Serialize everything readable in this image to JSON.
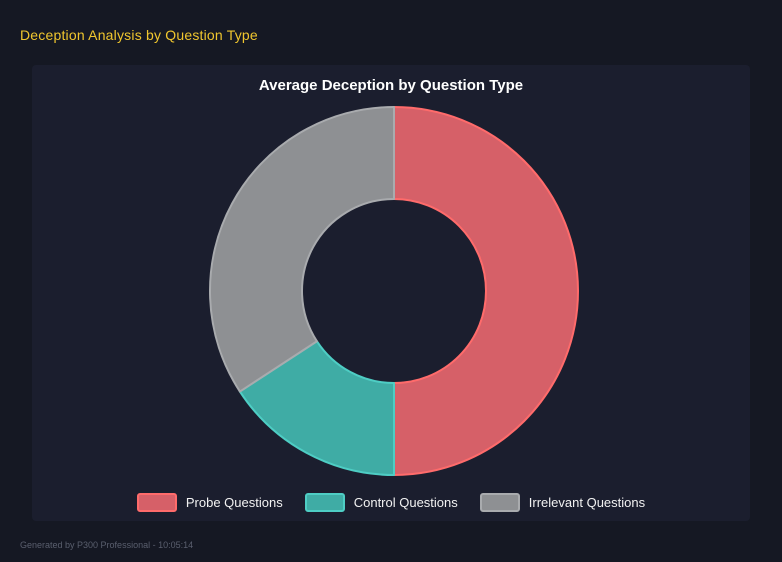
{
  "header": {
    "title": "Deception Analysis by Question Type",
    "title_color": "#f0c62e"
  },
  "footer": {
    "text": "Generated by P300 Professional - 10:05:14"
  },
  "panel": {
    "background": "#1b1e2e",
    "page_background": "#151823"
  },
  "chart_data": {
    "type": "doughnut",
    "title": "Average Deception by Question Type",
    "labels": [
      "Probe Questions",
      "Control Questions",
      "Irrelevant Questions"
    ],
    "values": [
      50.0,
      15.8,
      34.2
    ],
    "values_unit": "percent of circle, estimated from arc angles (no numeric labels displayed)",
    "cutout_ratio": 0.5,
    "rotation_start_deg": 0,
    "direction": "clockwise",
    "legend_position": "bottom",
    "title_color": "#ffffff",
    "legend_text_color": "#f2f2f2",
    "colors": {
      "fills": [
        "#d66068",
        "#3faca5",
        "#8e9093"
      ],
      "borders": [
        "#ff6b6b",
        "#4ecdc4",
        "#a9abae"
      ]
    }
  }
}
